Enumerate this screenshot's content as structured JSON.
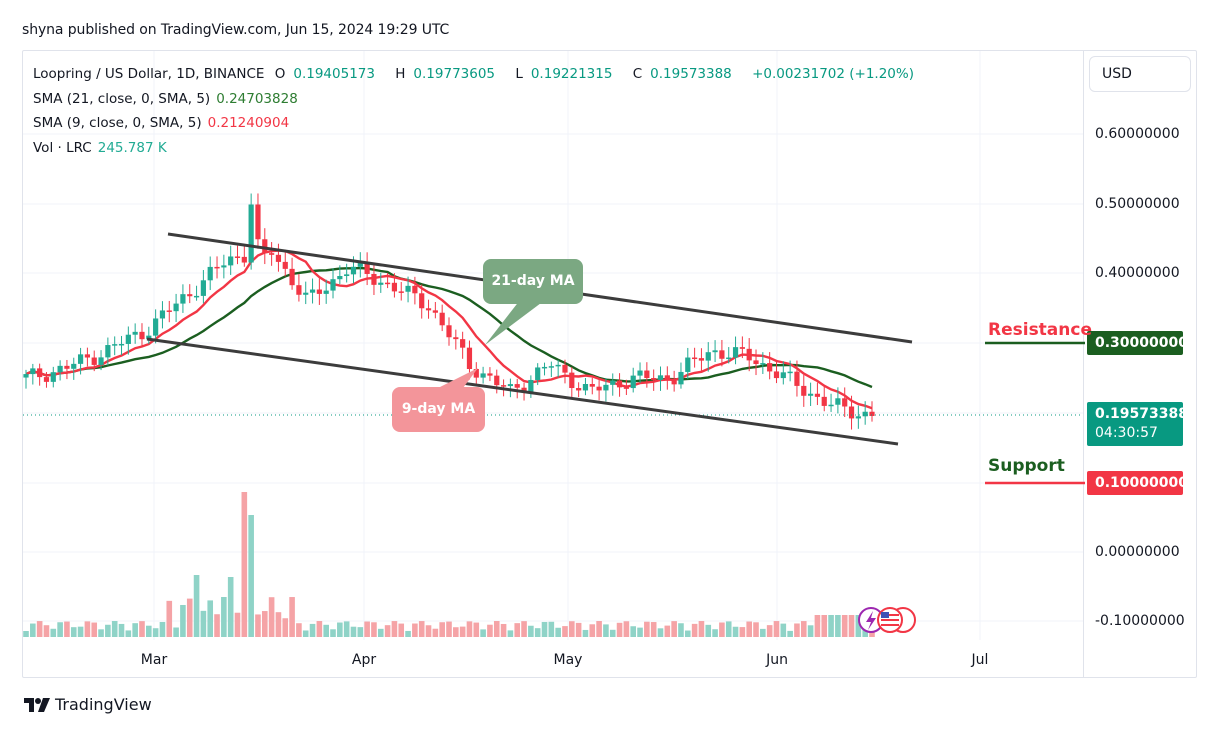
{
  "header": {
    "published_text": "shyna published on TradingView.com, Jun 15, 2024 19:29 UTC"
  },
  "legend": {
    "symbol": "Loopring / US Dollar, 1D, BINANCE",
    "ohlc": {
      "o_label": "O",
      "o": "0.19405173",
      "h_label": "H",
      "h": "0.19773605",
      "l_label": "L",
      "l": "0.19221315",
      "c_label": "C",
      "c": "0.19573388",
      "change": "+0.00231702 (+1.20%)"
    },
    "sma21": {
      "label": "SMA (21, close, 0, SMA, 5)",
      "value": "0.24703828"
    },
    "sma9": {
      "label": "SMA (9, close, 0, SMA, 5)",
      "value": "0.21240904"
    },
    "vol": {
      "label": "Vol · LRC",
      "value": "245.787 K"
    }
  },
  "price_axis": {
    "currency_button": "USD",
    "labels": [
      "0.60000000",
      "0.50000000",
      "0.40000000",
      "0.00000000",
      "-0.10000000"
    ],
    "resistance_tag": "0.30000000",
    "current_price_tag": "0.19573388",
    "countdown": "04:30:57",
    "support_tag": "0.10000000"
  },
  "time_axis": {
    "labels": [
      "Mar",
      "Apr",
      "May",
      "Jun",
      "Jul"
    ]
  },
  "annotations": {
    "resistance": "Resistance",
    "support": "Support",
    "ma21_callout": "21-day MA",
    "ma9_callout": "9-day MA"
  },
  "footer": {
    "brand": "TradingView"
  },
  "colors": {
    "up": "#22ab94",
    "down": "#f23645",
    "vol_up": "#8fd3c7",
    "vol_down": "#f5a3a6",
    "sma21": "#1b5e20",
    "sma9": "#f23645",
    "channel": "#3c3c3c",
    "resistance_line": "#1b5e20",
    "support_line": "#f23645"
  },
  "chart_data": {
    "type": "candlestick",
    "title": "Loopring / US Dollar, 1D, BINANCE",
    "xlabel": "",
    "ylabel": "USD",
    "x_ticks": [
      "Mar",
      "Apr",
      "May",
      "Jun",
      "Jul"
    ],
    "ylim": [
      -0.12,
      0.66
    ],
    "y_ticks": [
      0.6,
      0.5,
      0.4,
      0.3,
      0.2,
      0.1,
      0.0,
      -0.1
    ],
    "grid": true,
    "last": {
      "open": 0.19405173,
      "high": 0.19773605,
      "low": 0.19221315,
      "close": 0.19573388,
      "change": 0.00231702,
      "change_pct": 1.2
    },
    "indicators": [
      {
        "name": "SMA 21",
        "last": 0.24703828
      },
      {
        "name": "SMA 9",
        "last": 0.21240904
      },
      {
        "name": "Vol LRC",
        "last": "245.787K"
      }
    ],
    "horizontal_levels": [
      {
        "label": "Resistance",
        "value": 0.3
      },
      {
        "label": "Support",
        "value": 0.1
      }
    ],
    "channel_lines": [
      {
        "name": "upper",
        "from": {
          "date": "Mar-01",
          "price": 0.46
        },
        "to": {
          "date": "Jun-20",
          "price": 0.3
        }
      },
      {
        "name": "lower",
        "from": {
          "date": "Feb-28",
          "price": 0.305
        },
        "to": {
          "date": "Jun-20",
          "price": 0.16
        }
      }
    ],
    "approx_path": {
      "dates": [
        "Feb-10",
        "Feb-20",
        "Feb-28",
        "Mar-05",
        "Mar-10",
        "Mar-13",
        "Mar-15",
        "Mar-20",
        "Mar-26",
        "Apr-01",
        "Apr-08",
        "Apr-12",
        "Apr-15",
        "Apr-22",
        "May-01",
        "May-10",
        "May-20",
        "May-25",
        "Jun-01",
        "Jun-07",
        "Jun-12",
        "Jun-15"
      ],
      "close": [
        0.25,
        0.265,
        0.29,
        0.32,
        0.37,
        0.42,
        0.44,
        0.36,
        0.41,
        0.385,
        0.355,
        0.27,
        0.23,
        0.27,
        0.23,
        0.25,
        0.25,
        0.29,
        0.28,
        0.245,
        0.21,
        0.196
      ]
    }
  }
}
